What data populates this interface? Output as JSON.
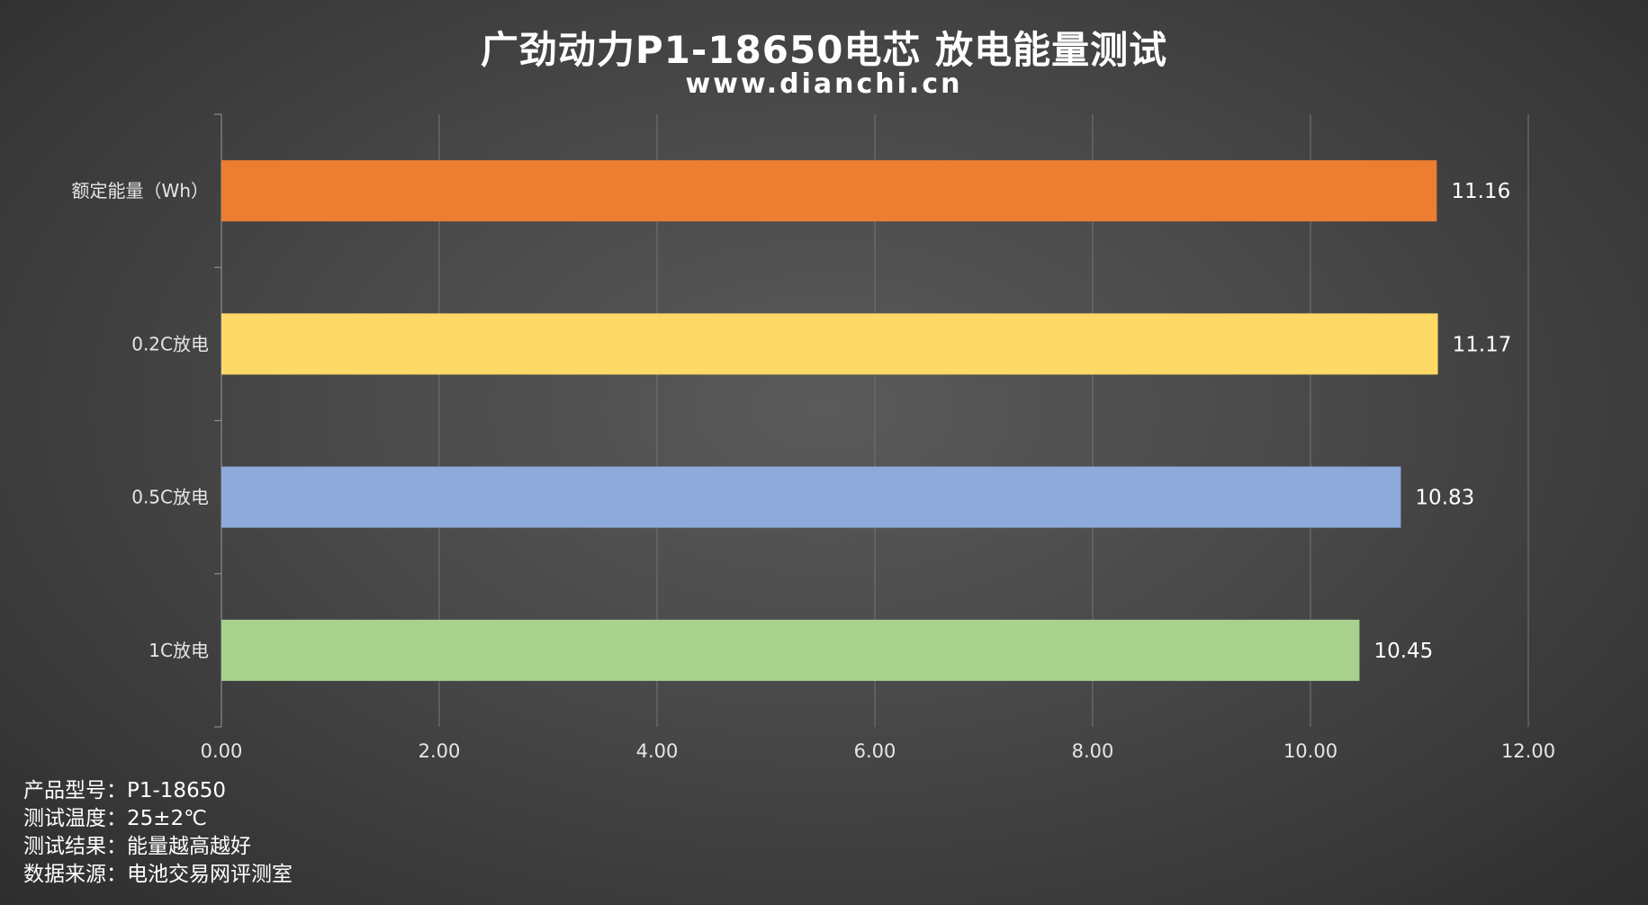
{
  "title": "广劲动力P1-18650电芯 放电能量测试",
  "subtitle": "www.dianchi.cn",
  "chart_data": {
    "type": "bar",
    "orientation": "horizontal",
    "categories": [
      "额定能量（Wh）",
      "0.2C放电",
      "0.5C放电",
      "1C放电"
    ],
    "values": [
      11.16,
      11.17,
      10.83,
      10.45
    ],
    "value_labels": [
      "11.16",
      "11.17",
      "10.83",
      "10.45"
    ],
    "colors": [
      "#ED7D31",
      "#FFD966",
      "#8EA9DB",
      "#A9D18E"
    ],
    "xlim": [
      0,
      12
    ],
    "xticks": [
      "0.00",
      "2.00",
      "4.00",
      "6.00",
      "8.00",
      "10.00",
      "12.00"
    ],
    "grid": true
  },
  "notes": [
    "产品型号：P1-18650",
    "测试温度：25±2℃",
    "测试结果：能量越高越好",
    "数据来源：电池交易网评测室"
  ]
}
